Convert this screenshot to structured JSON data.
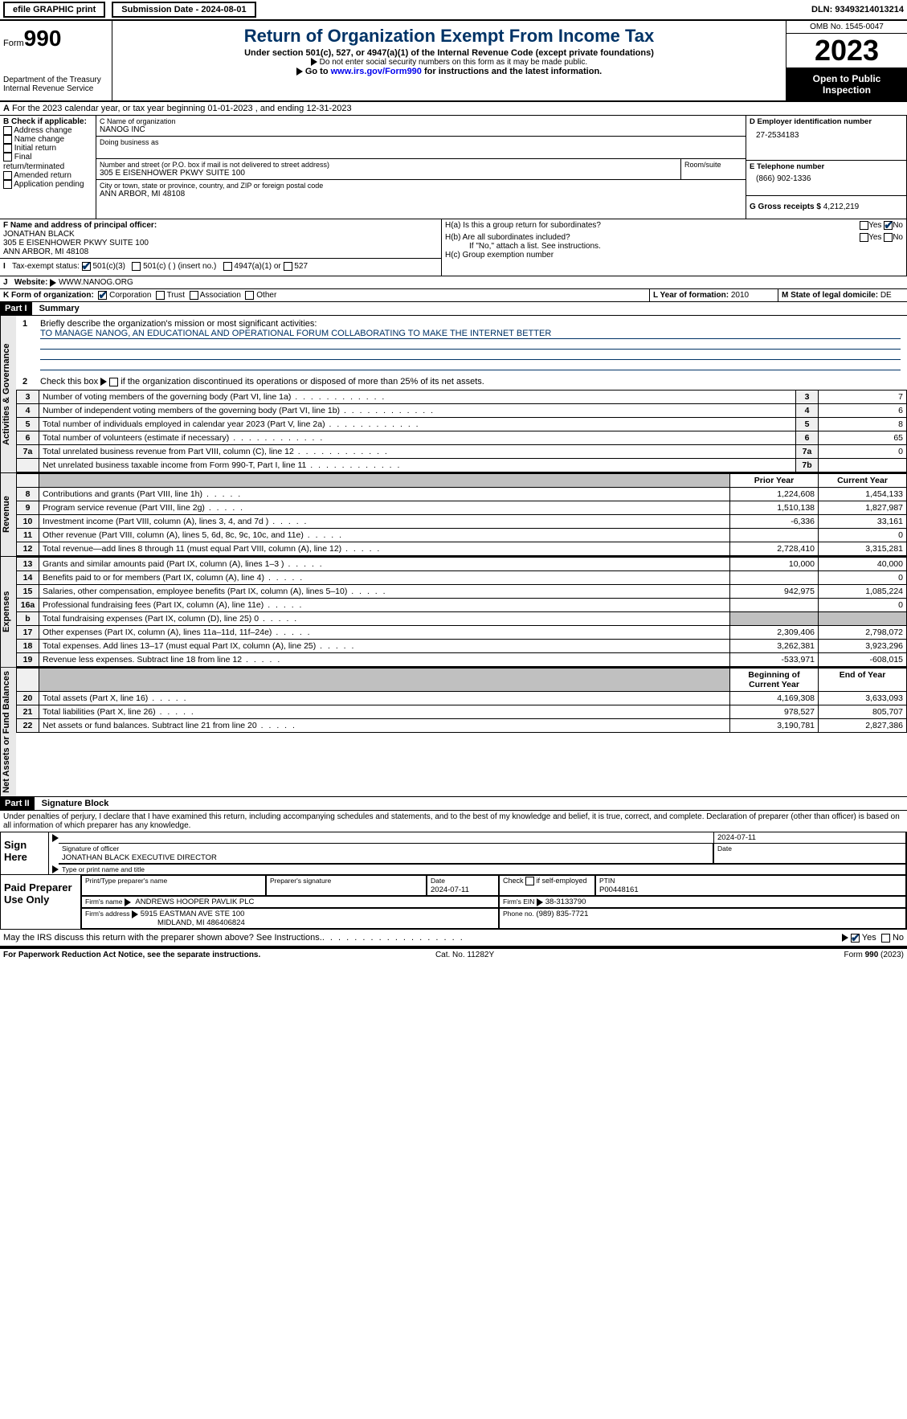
{
  "topbar": {
    "efile": "efile GRAPHIC print",
    "submission": "Submission Date - 2024-08-01",
    "dln": "DLN: 93493214013214"
  },
  "header": {
    "form_label": "Form",
    "form_number": "990",
    "dept1": "Department of the Treasury",
    "dept2": "Internal Revenue Service",
    "title": "Return of Organization Exempt From Income Tax",
    "subtitle1": "Under section 501(c), 527, or 4947(a)(1) of the Internal Revenue Code (except private foundations)",
    "subtitle2": "Do not enter social security numbers on this form as it may be made public.",
    "goto_pre": "Go to ",
    "goto_link": "www.irs.gov/Form990",
    "goto_post": " for instructions and the latest information.",
    "omb": "OMB No. 1545-0047",
    "year": "2023",
    "open_public": "Open to Public Inspection"
  },
  "lineA": "For the 2023 calendar year, or tax year beginning 01-01-2023    , and ending 12-31-2023",
  "boxB": {
    "label": "B Check if applicable:",
    "items": [
      "Address change",
      "Name change",
      "Initial return",
      "Final return/terminated",
      "Amended return",
      "Application pending"
    ]
  },
  "boxC": {
    "name_label": "C Name of organization",
    "name": "NANOG INC",
    "dba_label": "Doing business as",
    "street_label": "Number and street (or P.O. box if mail is not delivered to street address)",
    "room_label": "Room/suite",
    "street": "305 E EISENHOWER PKWY SUITE 100",
    "city_label": "City or town, state or province, country, and ZIP or foreign postal code",
    "city": "ANN ARBOR, MI  48108"
  },
  "boxD": {
    "label": "D Employer identification number",
    "value": "27-2534183"
  },
  "boxE": {
    "label": "E Telephone number",
    "value": "(866) 902-1336"
  },
  "boxG": {
    "label": "G Gross receipts $",
    "value": "4,212,219"
  },
  "boxF": {
    "label": "F  Name and address of principal officer:",
    "name": "JONATHAN BLACK",
    "addr1": "305 E EISENHOWER PKWY SUITE 100",
    "addr2": "ANN ARBOR, MI  48108"
  },
  "boxH": {
    "a_label": "H(a)  Is this a group return for subordinates?",
    "b_label": "H(b)  Are all subordinates included?",
    "b_note": "If \"No,\" attach a list. See instructions.",
    "c_label": "H(c)  Group exemption number",
    "yes": "Yes",
    "no": "No"
  },
  "boxI": {
    "label": "Tax-exempt status:",
    "o1": "501(c)(3)",
    "o2": "501(c) (  ) (insert no.)",
    "o3": "4947(a)(1) or",
    "o4": "527"
  },
  "boxJ": {
    "label": "Website:",
    "value": "WWW.NANOG.ORG"
  },
  "boxK": {
    "label": "K Form of organization:",
    "o1": "Corporation",
    "o2": "Trust",
    "o3": "Association",
    "o4": "Other"
  },
  "boxL": {
    "label": "L Year of formation:",
    "value": "2010"
  },
  "boxM": {
    "label": "M State of legal domicile:",
    "value": "DE"
  },
  "part1": {
    "head": "Part I",
    "title": "Summary",
    "q1_label": "Briefly describe the organization's mission or most significant activities:",
    "q1_value": "TO MANAGE NANOG, AN EDUCATIONAL AND OPERATIONAL FORUM COLLABORATING TO MAKE THE INTERNET BETTER",
    "q2": "Check this box        if the organization discontinued its operations or disposed of more than 25% of its net assets.",
    "rows_gov": [
      {
        "n": "3",
        "label": "Number of voting members of the governing body (Part VI, line 1a)",
        "box": "3",
        "val": "7"
      },
      {
        "n": "4",
        "label": "Number of independent voting members of the governing body (Part VI, line 1b)",
        "box": "4",
        "val": "6"
      },
      {
        "n": "5",
        "label": "Total number of individuals employed in calendar year 2023 (Part V, line 2a)",
        "box": "5",
        "val": "8"
      },
      {
        "n": "6",
        "label": "Total number of volunteers (estimate if necessary)",
        "box": "6",
        "val": "65"
      },
      {
        "n": "7a",
        "label": "Total unrelated business revenue from Part VIII, column (C), line 12",
        "box": "7a",
        "val": "0"
      },
      {
        "n": "",
        "label": "Net unrelated business taxable income from Form 990-T, Part I, line 11",
        "box": "7b",
        "val": ""
      }
    ],
    "col_prior": "Prior Year",
    "col_current": "Current Year",
    "rows_rev": [
      {
        "n": "8",
        "label": "Contributions and grants (Part VIII, line 1h)",
        "py": "1,224,608",
        "cy": "1,454,133"
      },
      {
        "n": "9",
        "label": "Program service revenue (Part VIII, line 2g)",
        "py": "1,510,138",
        "cy": "1,827,987"
      },
      {
        "n": "10",
        "label": "Investment income (Part VIII, column (A), lines 3, 4, and 7d )",
        "py": "-6,336",
        "cy": "33,161"
      },
      {
        "n": "11",
        "label": "Other revenue (Part VIII, column (A), lines 5, 6d, 8c, 9c, 10c, and 11e)",
        "py": "",
        "cy": "0"
      },
      {
        "n": "12",
        "label": "Total revenue—add lines 8 through 11 (must equal Part VIII, column (A), line 12)",
        "py": "2,728,410",
        "cy": "3,315,281"
      }
    ],
    "rows_exp": [
      {
        "n": "13",
        "label": "Grants and similar amounts paid (Part IX, column (A), lines 1–3 )",
        "py": "10,000",
        "cy": "40,000"
      },
      {
        "n": "14",
        "label": "Benefits paid to or for members (Part IX, column (A), line 4)",
        "py": "",
        "cy": "0"
      },
      {
        "n": "15",
        "label": "Salaries, other compensation, employee benefits (Part IX, column (A), lines 5–10)",
        "py": "942,975",
        "cy": "1,085,224"
      },
      {
        "n": "16a",
        "label": "Professional fundraising fees (Part IX, column (A), line 11e)",
        "py": "",
        "cy": "0"
      },
      {
        "n": "b",
        "label": "Total fundraising expenses (Part IX, column (D), line 25) 0",
        "py": "GRAY",
        "cy": "GRAY"
      },
      {
        "n": "17",
        "label": "Other expenses (Part IX, column (A), lines 11a–11d, 11f–24e)",
        "py": "2,309,406",
        "cy": "2,798,072"
      },
      {
        "n": "18",
        "label": "Total expenses. Add lines 13–17 (must equal Part IX, column (A), line 25)",
        "py": "3,262,381",
        "cy": "3,923,296"
      },
      {
        "n": "19",
        "label": "Revenue less expenses. Subtract line 18 from line 12",
        "py": "-533,971",
        "cy": "-608,015"
      }
    ],
    "col_begin": "Beginning of Current Year",
    "col_end": "End of Year",
    "rows_net": [
      {
        "n": "20",
        "label": "Total assets (Part X, line 16)",
        "py": "4,169,308",
        "cy": "3,633,093"
      },
      {
        "n": "21",
        "label": "Total liabilities (Part X, line 26)",
        "py": "978,527",
        "cy": "805,707"
      },
      {
        "n": "22",
        "label": "Net assets or fund balances. Subtract line 21 from line 20",
        "py": "3,190,781",
        "cy": "2,827,386"
      }
    ],
    "side_gov": "Activities & Governance",
    "side_rev": "Revenue",
    "side_exp": "Expenses",
    "side_net": "Net Assets or Fund Balances"
  },
  "part2": {
    "head": "Part II",
    "title": "Signature Block",
    "decl": "Under penalties of perjury, I declare that I have examined this return, including accompanying schedules and statements, and to the best of my knowledge and belief, it is true, correct, and complete. Declaration of preparer (other than officer) is based on all information of which preparer has any knowledge.",
    "sign_here": "Sign Here",
    "sig_officer": "Signature of officer",
    "officer_name": "JONATHAN BLACK  EXECUTIVE DIRECTOR",
    "officer_type": "Type or print name and title",
    "date_label": "Date",
    "date1": "2024-07-11",
    "paid_prep": "Paid Preparer Use Only",
    "prep_name_label": "Print/Type preparer's name",
    "prep_sig_label": "Preparer's signature",
    "prep_date": "2024-07-11",
    "self_emp": "Check         if self-employed",
    "ptin_label": "PTIN",
    "ptin": "P00448161",
    "firm_name_label": "Firm's name",
    "firm_name": "ANDREWS HOOPER PAVLIK PLC",
    "firm_ein_label": "Firm's EIN",
    "firm_ein": "38-3133790",
    "firm_addr_label": "Firm's address",
    "firm_addr1": "5915 EASTMAN AVE STE 100",
    "firm_addr2": "MIDLAND, MI  486406824",
    "phone_label": "Phone no.",
    "phone": "(989) 835-7721",
    "discuss": "May the IRS discuss this return with the preparer shown above? See Instructions.",
    "yes": "Yes",
    "no": "No"
  },
  "footer": {
    "paperwork": "For Paperwork Reduction Act Notice, see the separate instructions.",
    "catno": "Cat. No. 11282Y",
    "formref": "Form 990 (2023)"
  }
}
